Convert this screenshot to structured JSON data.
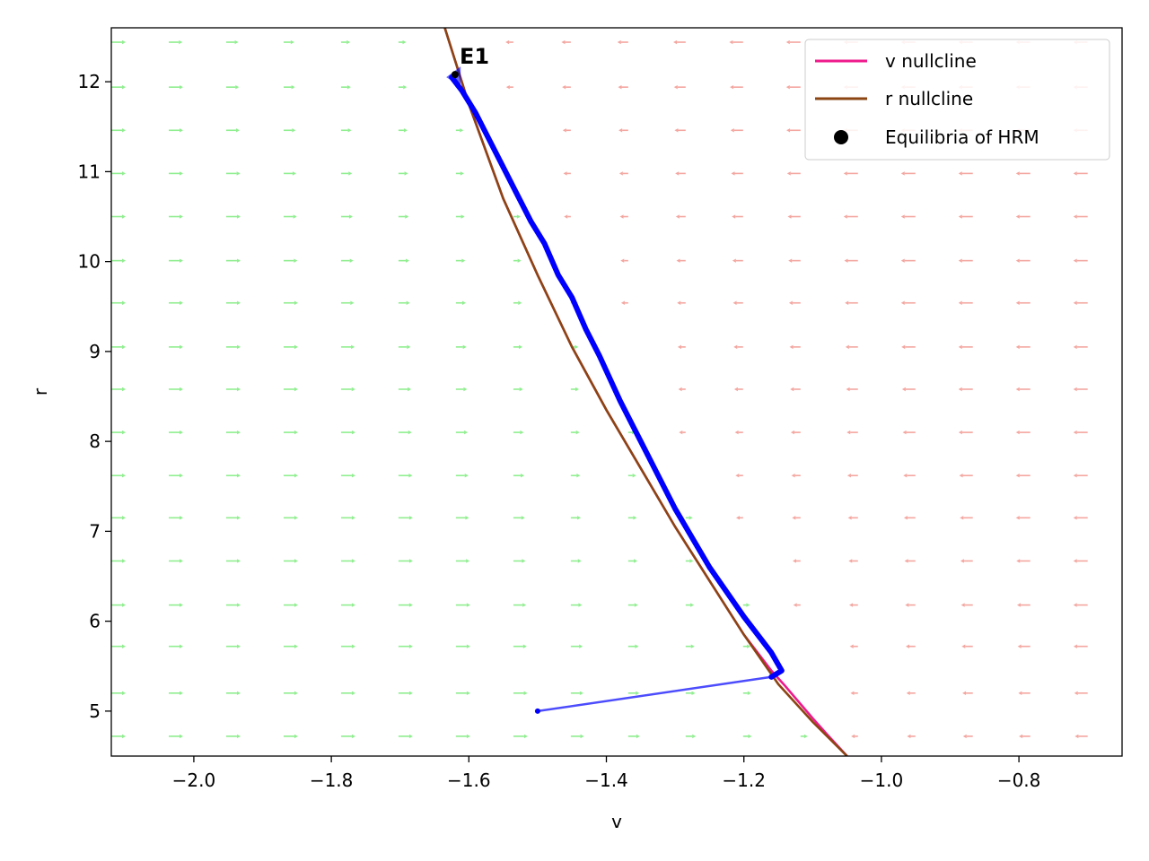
{
  "chart_data": {
    "type": "line",
    "title": "",
    "xlabel": "v",
    "ylabel": "r",
    "xlim": [
      -2.12,
      -0.65
    ],
    "ylim": [
      4.5,
      12.6
    ],
    "xticks": [
      -2.0,
      -1.8,
      -1.6,
      -1.4,
      -1.2,
      -1.0,
      -0.8
    ],
    "xtick_labels": [
      "−2.0",
      "−1.8",
      "−1.6",
      "−1.4",
      "−1.2",
      "−1.0",
      "−0.8"
    ],
    "yticks": [
      5,
      6,
      7,
      8,
      9,
      10,
      11,
      12
    ],
    "ytick_labels": [
      "5",
      "6",
      "7",
      "8",
      "9",
      "10",
      "11",
      "12"
    ],
    "grid": false,
    "legend_position": "upper right",
    "series": [
      {
        "name": "v nullcline",
        "color": "#ee1a8c",
        "x": [
          -1.635,
          -1.6,
          -1.55,
          -1.5,
          -1.45,
          -1.4,
          -1.35,
          -1.3,
          -1.25,
          -1.2,
          -1.16,
          -1.14,
          -1.12,
          -1.1,
          -1.08,
          -1.05
        ],
        "y": [
          12.6,
          11.75,
          10.7,
          9.85,
          9.05,
          8.35,
          7.7,
          7.05,
          6.45,
          5.85,
          5.45,
          5.28,
          5.1,
          4.92,
          4.75,
          4.5
        ]
      },
      {
        "name": "r nullcline",
        "color": "#8b4513",
        "x": [
          -1.635,
          -1.6,
          -1.55,
          -1.5,
          -1.45,
          -1.4,
          -1.35,
          -1.3,
          -1.25,
          -1.2,
          -1.15,
          -1.1,
          -1.05
        ],
        "y": [
          12.6,
          11.75,
          10.7,
          9.85,
          9.05,
          8.35,
          7.7,
          7.05,
          6.45,
          5.85,
          5.3,
          4.88,
          4.5
        ]
      }
    ],
    "trajectory": {
      "color": "#0000ff",
      "x": [
        -1.5,
        -1.16,
        -1.145,
        -1.16,
        -1.2,
        -1.25,
        -1.3,
        -1.34,
        -1.38,
        -1.41,
        -1.43,
        -1.45,
        -1.47,
        -1.49,
        -1.51,
        -1.53,
        -1.55,
        -1.57,
        -1.59,
        -1.61,
        -1.625
      ],
      "y": [
        5.0,
        5.38,
        5.45,
        5.65,
        6.05,
        6.6,
        7.25,
        7.85,
        8.45,
        8.95,
        9.25,
        9.6,
        9.85,
        10.2,
        10.45,
        10.75,
        11.05,
        11.35,
        11.65,
        11.9,
        12.05
      ]
    },
    "equilibria": {
      "name": "Equilibria of HRM",
      "color": "#000000",
      "points": [
        {
          "label": "E1",
          "x": -1.62,
          "y": 12.08
        }
      ]
    },
    "vector_field": {
      "color_positive": "#90ee90",
      "color_negative": "#f4a6a0",
      "x_range": [
        -2.12,
        -0.7
      ],
      "x_count": 18,
      "y_values": [
        4.72,
        5.2,
        5.72,
        6.18,
        6.67,
        7.15,
        7.62,
        8.1,
        8.58,
        9.05,
        9.54,
        10.01,
        10.5,
        10.98,
        11.46,
        11.94,
        12.44
      ]
    }
  }
}
